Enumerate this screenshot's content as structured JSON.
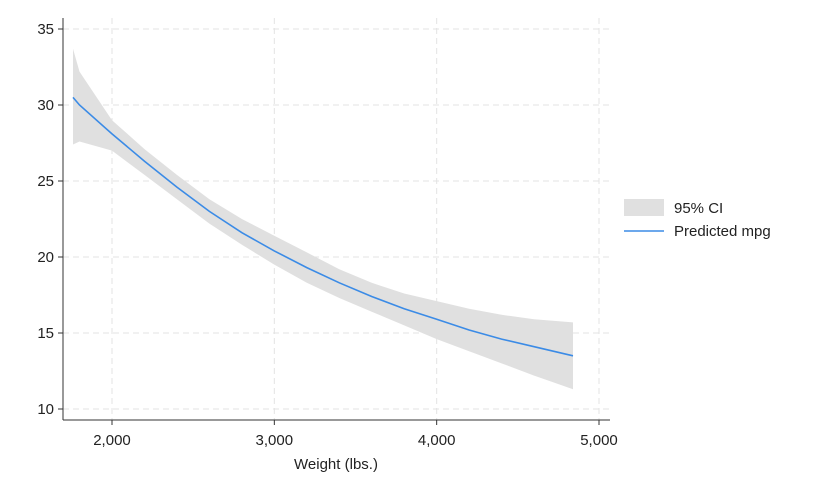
{
  "chart_data": {
    "type": "line",
    "title": "",
    "xlabel": "Weight (lbs.)",
    "ylabel": "",
    "xlim": [
      1760,
      5000
    ],
    "ylim": [
      9.5,
      35.5
    ],
    "x_ticks": [
      2000,
      3000,
      4000,
      5000
    ],
    "x_tick_labels": [
      "2,000",
      "3,000",
      "4,000",
      "5,000"
    ],
    "y_ticks": [
      10,
      15,
      20,
      25,
      30,
      35
    ],
    "y_tick_labels": [
      "10",
      "15",
      "20",
      "25",
      "30",
      "35"
    ],
    "grid": true,
    "legend": "right",
    "x": [
      1760,
      1800,
      2000,
      2200,
      2400,
      2600,
      2800,
      3000,
      3200,
      3400,
      3600,
      3800,
      4000,
      4200,
      4400,
      4600,
      4840
    ],
    "series": [
      {
        "name": "Predicted mpg",
        "color": "#3b8be6",
        "values": [
          30.5,
          30.0,
          28.1,
          26.3,
          24.6,
          23.0,
          21.6,
          20.4,
          19.3,
          18.3,
          17.4,
          16.6,
          15.9,
          15.2,
          14.6,
          14.1,
          13.5
        ]
      }
    ],
    "ci": {
      "name": "95% CI",
      "color": "#e0e0e0",
      "upper": [
        33.7,
        32.2,
        29.0,
        27.1,
        25.4,
        23.8,
        22.5,
        21.4,
        20.3,
        19.2,
        18.3,
        17.6,
        17.1,
        16.6,
        16.2,
        15.9,
        15.7
      ],
      "lower": [
        27.4,
        27.6,
        27.0,
        25.4,
        23.8,
        22.2,
        20.8,
        19.5,
        18.3,
        17.3,
        16.4,
        15.5,
        14.6,
        13.8,
        13.0,
        12.2,
        11.3
      ]
    }
  }
}
